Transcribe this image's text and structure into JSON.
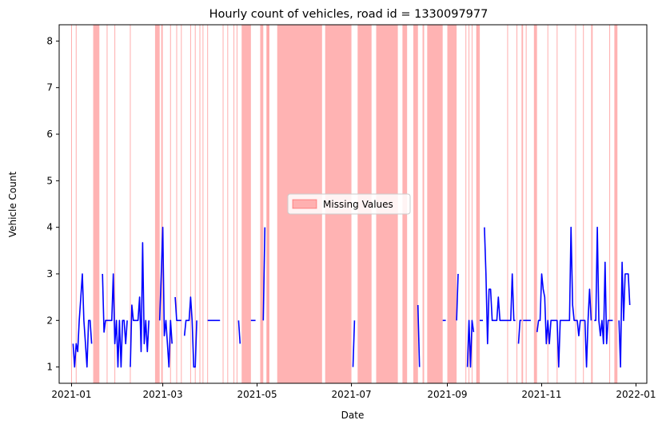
{
  "chart_data": {
    "type": "line",
    "title": "Hourly count of vehicles, road id = 1330097977",
    "xlabel": "Date",
    "ylabel": "Vehicle Count",
    "xlim": [
      "2020-12-24",
      "2022-01-08"
    ],
    "ylim": [
      0.65,
      8.35
    ],
    "yticks": [
      1,
      2,
      3,
      4,
      5,
      6,
      7,
      8
    ],
    "xticks": [
      "2021-01",
      "2021-03",
      "2021-05",
      "2021-07",
      "2021-09",
      "2021-11",
      "2022-01"
    ],
    "grid": false,
    "legend": {
      "placement": "center",
      "entries": [
        "Missing Values"
      ]
    },
    "colors": {
      "series": "#0000ff",
      "missing": "#ff9999"
    },
    "missing_lines": [
      "2021-01-01",
      "2021-01-04",
      "2021-01-24",
      "2021-01-29",
      "2021-02-08",
      "2021-03-06",
      "2021-03-10",
      "2021-03-13",
      "2021-03-19",
      "2021-03-22",
      "2021-03-25",
      "2021-03-27",
      "2021-03-30",
      "2021-04-09",
      "2021-04-12",
      "2021-04-16",
      "2021-04-18",
      "2021-05-08",
      "2021-09-13",
      "2021-09-15",
      "2021-09-17",
      "2021-09-20",
      "2021-10-10",
      "2021-10-16",
      "2021-10-22",
      "2021-11-05",
      "2021-11-11",
      "2021-11-23",
      "2021-11-28",
      "2021-12-15"
    ],
    "missing_spans": [
      [
        "2021-01-15",
        "2021-01-19"
      ],
      [
        "2021-02-24",
        "2021-02-27"
      ],
      [
        "2021-02-28",
        "2021-03-01"
      ],
      [
        "2021-04-21",
        "2021-04-27"
      ],
      [
        "2021-05-03",
        "2021-05-05"
      ],
      [
        "2021-05-07",
        "2021-05-09"
      ],
      [
        "2021-05-14",
        "2021-06-12"
      ],
      [
        "2021-06-14",
        "2021-07-01"
      ],
      [
        "2021-07-05",
        "2021-07-14"
      ],
      [
        "2021-07-17",
        "2021-07-31"
      ],
      [
        "2021-08-03",
        "2021-08-06"
      ],
      [
        "2021-08-10",
        "2021-08-13"
      ],
      [
        "2021-08-16",
        "2021-08-17"
      ],
      [
        "2021-08-19",
        "2021-08-29"
      ],
      [
        "2021-09-01",
        "2021-09-07"
      ],
      [
        "2021-09-20",
        "2021-09-22"
      ],
      [
        "2021-10-19",
        "2021-10-20"
      ],
      [
        "2021-10-27",
        "2021-10-29"
      ],
      [
        "2021-12-03",
        "2021-12-04"
      ],
      [
        "2021-12-18",
        "2021-12-20"
      ]
    ],
    "series": [
      {
        "segments": [
          [
            [
              "2021-01-02",
              1.5
            ],
            [
              "2021-01-03",
              1.0
            ],
            [
              "2021-01-04",
              1.5
            ],
            [
              "2021-01-05",
              1.33
            ],
            [
              "2021-01-06",
              2.0
            ],
            [
              "2021-01-07",
              2.5
            ],
            [
              "2021-01-08",
              3.0
            ],
            [
              "2021-01-09",
              2.0
            ],
            [
              "2021-01-10",
              1.5
            ],
            [
              "2021-01-11",
              1.0
            ],
            [
              "2021-01-12",
              2.0
            ],
            [
              "2021-01-13",
              2.0
            ],
            [
              "2021-01-14",
              1.5
            ]
          ],
          [
            [
              "2021-01-21",
              3.0
            ],
            [
              "2021-01-22",
              1.75
            ],
            [
              "2021-01-23",
              2.0
            ],
            [
              "2021-01-24",
              2.0
            ],
            [
              "2021-01-25",
              2.0
            ],
            [
              "2021-01-26",
              2.0
            ],
            [
              "2021-01-27",
              2.0
            ],
            [
              "2021-01-28",
              3.0
            ],
            [
              "2021-01-29",
              1.5
            ],
            [
              "2021-01-30",
              2.0
            ],
            [
              "2021-01-31",
              1.0
            ],
            [
              "2021-02-01",
              2.0
            ],
            [
              "2021-02-02",
              1.0
            ],
            [
              "2021-02-03",
              2.0
            ],
            [
              "2021-02-04",
              2.0
            ],
            [
              "2021-02-05",
              1.5
            ],
            [
              "2021-02-06",
              2.0
            ]
          ],
          [
            [
              "2021-02-08",
              1.0
            ],
            [
              "2021-02-09",
              2.33
            ],
            [
              "2021-02-10",
              2.0
            ],
            [
              "2021-02-11",
              2.0
            ],
            [
              "2021-02-12",
              2.0
            ],
            [
              "2021-02-13",
              2.0
            ],
            [
              "2021-02-14",
              2.5
            ],
            [
              "2021-02-15",
              1.33
            ],
            [
              "2021-02-16",
              3.67
            ],
            [
              "2021-02-17",
              1.5
            ],
            [
              "2021-02-18",
              2.0
            ],
            [
              "2021-02-19",
              1.33
            ],
            [
              "2021-02-20",
              2.0
            ]
          ],
          [
            [
              "2021-02-27",
              2.0
            ],
            [
              "2021-02-28",
              3.0
            ],
            [
              "2021-03-01",
              4.0
            ],
            [
              "2021-03-02",
              1.67
            ],
            [
              "2021-03-03",
              2.0
            ],
            [
              "2021-03-04",
              1.5
            ],
            [
              "2021-03-05",
              1.0
            ],
            [
              "2021-03-06",
              2.0
            ],
            [
              "2021-03-07",
              1.5
            ]
          ],
          [
            [
              "2021-03-09",
              2.5
            ],
            [
              "2021-03-10",
              2.0
            ],
            [
              "2021-03-11",
              2.0
            ],
            [
              "2021-03-12",
              2.0
            ],
            [
              "2021-03-13",
              2.0
            ]
          ],
          [
            [
              "2021-03-15",
              1.67
            ],
            [
              "2021-03-16",
              2.0
            ],
            [
              "2021-03-17",
              2.0
            ],
            [
              "2021-03-18",
              2.0
            ],
            [
              "2021-03-19",
              2.5
            ],
            [
              "2021-03-20",
              2.0
            ],
            [
              "2021-03-21",
              1.0
            ],
            [
              "2021-03-22",
              1.0
            ],
            [
              "2021-03-23",
              2.0
            ]
          ],
          [
            [
              "2021-03-30",
              2.0
            ],
            [
              "2021-03-31",
              2.0
            ],
            [
              "2021-04-01",
              2.0
            ],
            [
              "2021-04-02",
              2.0
            ],
            [
              "2021-04-03",
              2.0
            ],
            [
              "2021-04-04",
              2.0
            ],
            [
              "2021-04-05",
              2.0
            ],
            [
              "2021-04-06",
              2.0
            ],
            [
              "2021-04-07",
              2.0
            ]
          ],
          [
            [
              "2021-04-19",
              2.0
            ],
            [
              "2021-04-20",
              1.5
            ]
          ],
          [
            [
              "2021-04-27",
              2.0
            ],
            [
              "2021-04-28",
              2.0
            ],
            [
              "2021-04-29",
              2.0
            ],
            [
              "2021-04-30",
              2.0
            ]
          ],
          [
            [
              "2021-05-05",
              2.0
            ],
            [
              "2021-05-06",
              4.0
            ]
          ],
          [
            [
              "2021-07-02",
              1.0
            ],
            [
              "2021-07-03",
              2.0
            ]
          ],
          [
            [
              "2021-08-13",
              2.33
            ],
            [
              "2021-08-14",
              1.0
            ]
          ],
          [
            [
              "2021-08-29",
              2.0
            ],
            [
              "2021-08-30",
              2.0
            ],
            [
              "2021-08-31",
              2.0
            ]
          ],
          [
            [
              "2021-09-07",
              2.0
            ],
            [
              "2021-09-08",
              3.0
            ]
          ],
          [
            [
              "2021-09-14",
              1.0
            ],
            [
              "2021-09-15",
              2.0
            ],
            [
              "2021-09-16",
              1.0
            ],
            [
              "2021-09-17",
              2.0
            ],
            [
              "2021-09-18",
              1.75
            ]
          ],
          [
            [
              "2021-09-23",
              2.0
            ]
          ],
          [
            [
              "2021-09-25",
              4.0
            ],
            [
              "2021-09-26",
              3.0
            ],
            [
              "2021-09-27",
              1.5
            ],
            [
              "2021-09-28",
              2.67
            ],
            [
              "2021-09-29",
              2.67
            ],
            [
              "2021-09-30",
              2.0
            ],
            [
              "2021-10-01",
              2.0
            ],
            [
              "2021-10-02",
              2.0
            ],
            [
              "2021-10-03",
              2.0
            ],
            [
              "2021-10-04",
              2.5
            ],
            [
              "2021-10-05",
              2.0
            ],
            [
              "2021-10-06",
              2.0
            ],
            [
              "2021-10-07",
              2.0
            ],
            [
              "2021-10-08",
              2.0
            ],
            [
              "2021-10-09",
              2.0
            ],
            [
              "2021-10-10",
              2.0
            ],
            [
              "2021-10-11",
              2.0
            ],
            [
              "2021-10-12",
              2.0
            ],
            [
              "2021-10-13",
              3.0
            ],
            [
              "2021-10-14",
              2.0
            ],
            [
              "2021-10-15",
              2.0
            ]
          ],
          [
            [
              "2021-10-17",
              1.5
            ],
            [
              "2021-10-18",
              2.0
            ],
            [
              "2021-10-19",
              2.0
            ]
          ],
          [
            [
              "2021-10-20",
              2.0
            ],
            [
              "2021-10-21",
              2.0
            ],
            [
              "2021-10-22",
              2.0
            ],
            [
              "2021-10-23",
              2.0
            ],
            [
              "2021-10-24",
              2.0
            ],
            [
              "2021-10-25",
              2.0
            ]
          ],
          [
            [
              "2021-10-29",
              1.75
            ],
            [
              "2021-10-30",
              2.0
            ],
            [
              "2021-10-31",
              2.0
            ],
            [
              "2021-11-01",
              3.0
            ],
            [
              "2021-11-02",
              2.67
            ],
            [
              "2021-11-03",
              2.5
            ],
            [
              "2021-11-04",
              1.5
            ],
            [
              "2021-11-05",
              2.0
            ],
            [
              "2021-11-06",
              1.5
            ],
            [
              "2021-11-07",
              2.0
            ],
            [
              "2021-11-08",
              2.0
            ],
            [
              "2021-11-09",
              2.0
            ],
            [
              "2021-11-10",
              2.0
            ],
            [
              "2021-11-11",
              2.0
            ],
            [
              "2021-11-12",
              1.0
            ],
            [
              "2021-11-13",
              2.0
            ],
            [
              "2021-11-14",
              2.0
            ],
            [
              "2021-11-15",
              2.0
            ],
            [
              "2021-11-16",
              2.0
            ],
            [
              "2021-11-17",
              2.0
            ],
            [
              "2021-11-18",
              2.0
            ],
            [
              "2021-11-19",
              2.0
            ],
            [
              "2021-11-20",
              4.0
            ],
            [
              "2021-11-21",
              2.33
            ],
            [
              "2021-11-22",
              2.0
            ],
            [
              "2021-11-23",
              2.0
            ],
            [
              "2021-11-24",
              2.0
            ],
            [
              "2021-11-25",
              1.67
            ],
            [
              "2021-11-26",
              2.0
            ],
            [
              "2021-11-27",
              2.0
            ],
            [
              "2021-11-28",
              2.0
            ],
            [
              "2021-11-29",
              2.0
            ],
            [
              "2021-11-30",
              1.0
            ],
            [
              "2021-12-01",
              2.0
            ],
            [
              "2021-12-02",
              2.67
            ],
            [
              "2021-12-03",
              2.0
            ]
          ],
          [
            [
              "2021-12-05",
              2.0
            ],
            [
              "2021-12-06",
              2.0
            ],
            [
              "2021-12-07",
              4.0
            ],
            [
              "2021-12-08",
              2.0
            ],
            [
              "2021-12-09",
              1.67
            ],
            [
              "2021-12-10",
              2.0
            ],
            [
              "2021-12-11",
              1.5
            ],
            [
              "2021-12-12",
              3.25
            ],
            [
              "2021-12-13",
              1.5
            ],
            [
              "2021-12-14",
              2.0
            ],
            [
              "2021-12-15",
              2.0
            ],
            [
              "2021-12-16",
              2.0
            ],
            [
              "2021-12-17",
              2.0
            ]
          ],
          [
            [
              "2021-12-21",
              2.0
            ],
            [
              "2021-12-22",
              1.0
            ],
            [
              "2021-12-23",
              3.25
            ],
            [
              "2021-12-24",
              2.0
            ],
            [
              "2021-12-25",
              3.0
            ],
            [
              "2021-12-26",
              3.0
            ],
            [
              "2021-12-27",
              3.0
            ],
            [
              "2021-12-28",
              2.33
            ]
          ]
        ]
      }
    ]
  }
}
